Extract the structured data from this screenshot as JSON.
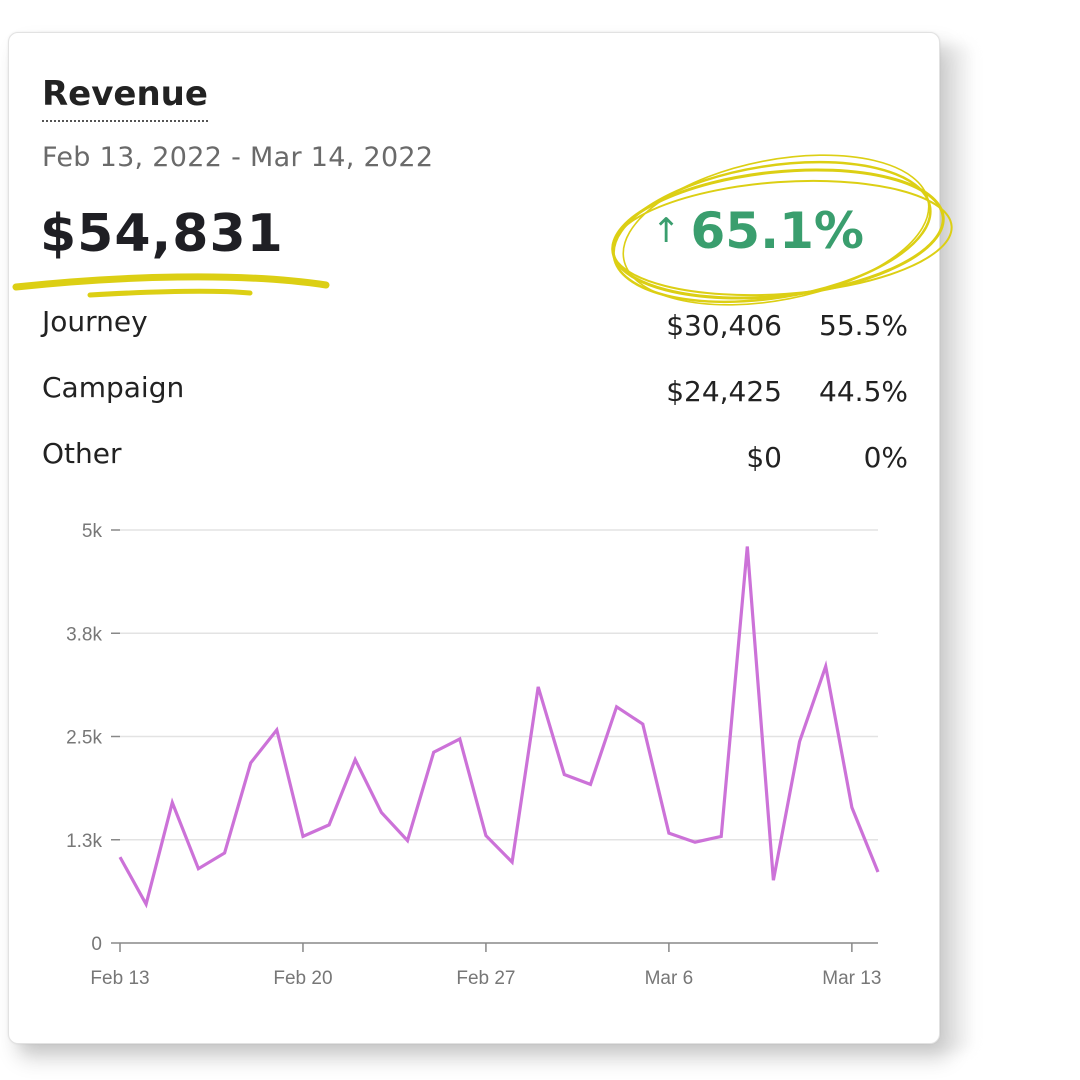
{
  "card": {
    "title": "Revenue",
    "date_range": "Feb 13, 2022 - Mar 14, 2022",
    "total": "$54,831",
    "change": {
      "arrow_icon": "arrow-up-icon",
      "value": "65.1%",
      "color": "#3a9e6e"
    },
    "breakdown": [
      {
        "label": "Journey",
        "amount": "$30,406",
        "percent": "55.5%"
      },
      {
        "label": "Campaign",
        "amount": "$24,425",
        "percent": "44.5%"
      },
      {
        "label": "Other",
        "amount": "$0",
        "percent": "0%"
      }
    ],
    "highlight_color": "#dccf14"
  },
  "chart_data": {
    "type": "line",
    "x_tick_labels": [
      "Feb 13",
      "Feb 20",
      "Feb 27",
      "Mar 6",
      "Mar 13"
    ],
    "y_tick_labels": [
      "0",
      "1.3k",
      "2.5k",
      "3.8k",
      "5k"
    ],
    "ylim": [
      0,
      5000
    ],
    "grid": true,
    "line_color": "#cc72d8",
    "series": [
      {
        "x": [
          "Feb 13",
          "Feb 14",
          "Feb 15",
          "Feb 16",
          "Feb 17",
          "Feb 18",
          "Feb 19",
          "Feb 20",
          "Feb 21",
          "Feb 22",
          "Feb 23",
          "Feb 24",
          "Feb 25",
          "Feb 26",
          "Feb 27",
          "Feb 28",
          "Mar 1",
          "Mar 2",
          "Mar 3",
          "Mar 4",
          "Mar 5",
          "Mar 6",
          "Mar 7",
          "Mar 8",
          "Mar 9",
          "Mar 10",
          "Mar 11",
          "Mar 12",
          "Mar 13",
          "Mar 14"
        ],
        "values": [
          1040,
          470,
          1700,
          900,
          1090,
          2180,
          2580,
          1290,
          1430,
          2220,
          1580,
          1240,
          2310,
          2470,
          1300,
          980,
          3100,
          2040,
          1920,
          2860,
          2650,
          1330,
          1220,
          1290,
          4800,
          760,
          2440,
          3350,
          1640,
          860
        ]
      }
    ]
  }
}
